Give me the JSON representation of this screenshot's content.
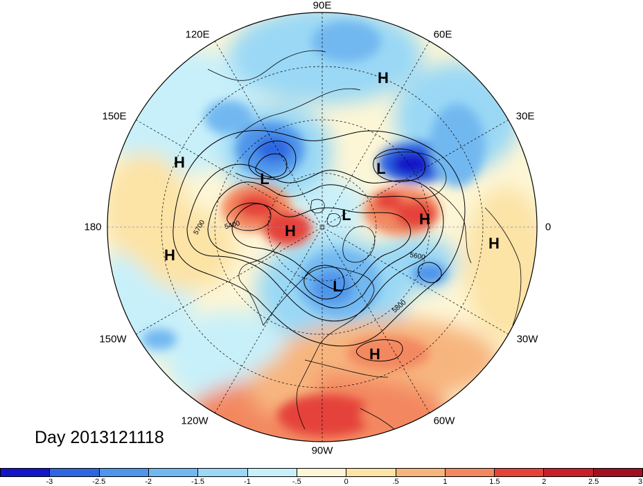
{
  "figure": {
    "date_text": "Day 2013121118"
  },
  "longitude_labels": [
    {
      "name": "lon-90e",
      "text": "90E"
    },
    {
      "name": "lon-60e",
      "text": "60E"
    },
    {
      "name": "lon-120e",
      "text": "120E"
    },
    {
      "name": "lon-30e",
      "text": "30E"
    },
    {
      "name": "lon-150e",
      "text": "150E"
    },
    {
      "name": "lon-180",
      "text": "180"
    },
    {
      "name": "lon-0",
      "text": "0"
    },
    {
      "name": "lon-150w",
      "text": "150W"
    },
    {
      "name": "lon-30w",
      "text": "30W"
    },
    {
      "name": "lon-120w",
      "text": "120W"
    },
    {
      "name": "lon-60w",
      "text": "60W"
    },
    {
      "name": "lon-90w",
      "text": "90W"
    }
  ],
  "pressure_centers": [
    {
      "type": "H"
    },
    {
      "type": "H"
    },
    {
      "type": "H"
    },
    {
      "type": "H"
    },
    {
      "type": "H"
    },
    {
      "type": "H"
    },
    {
      "type": "H"
    },
    {
      "type": "L"
    },
    {
      "type": "L"
    },
    {
      "type": "L"
    },
    {
      "type": "L"
    }
  ],
  "contour_labels": [
    "5700",
    "5400",
    "5600",
    "5800"
  ],
  "colorbar": {
    "colors": [
      "#1515c8",
      "#2f66e0",
      "#4f95ea",
      "#72b8f0",
      "#9ad8f5",
      "#c8f0fa",
      "#fdf6d6",
      "#fce3a6",
      "#f7b57e",
      "#f38860",
      "#e5433a",
      "#c8202a",
      "#a01020"
    ],
    "ticks": [
      "-3",
      "-2.5",
      "-2",
      "-1.5",
      "-1",
      "-.5",
      "0",
      ".5",
      "1",
      "1.5",
      "2",
      "2.5",
      "3"
    ]
  }
}
